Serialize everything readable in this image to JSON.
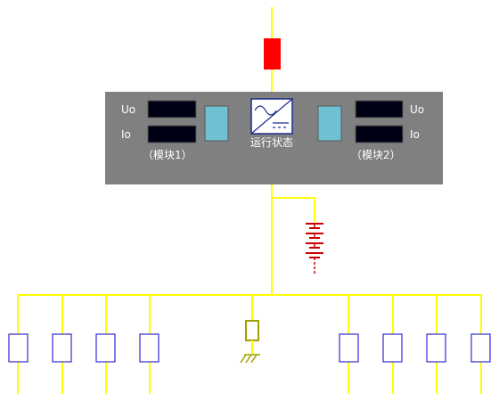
{
  "panel": {
    "module1": {
      "uo_label": "Uo",
      "io_label": "Io",
      "name": "（模块1）"
    },
    "module2": {
      "uo_label": "Uo",
      "io_label": "Io",
      "name": "（模块2）"
    },
    "status_label": "运行状态"
  },
  "colors": {
    "bus": "#ffff00",
    "panel": "#808080",
    "fuse": "#ff0000",
    "battery": "#cc0000",
    "display": "#000014",
    "indicator": "#6ec0d2",
    "feeder": "#0000cc",
    "ground": "#a0a000"
  },
  "icons": {
    "fuse": "fuse-icon",
    "battery": "battery-icon",
    "converter": "ac-dc-converter-icon",
    "ground": "ground-icon"
  }
}
